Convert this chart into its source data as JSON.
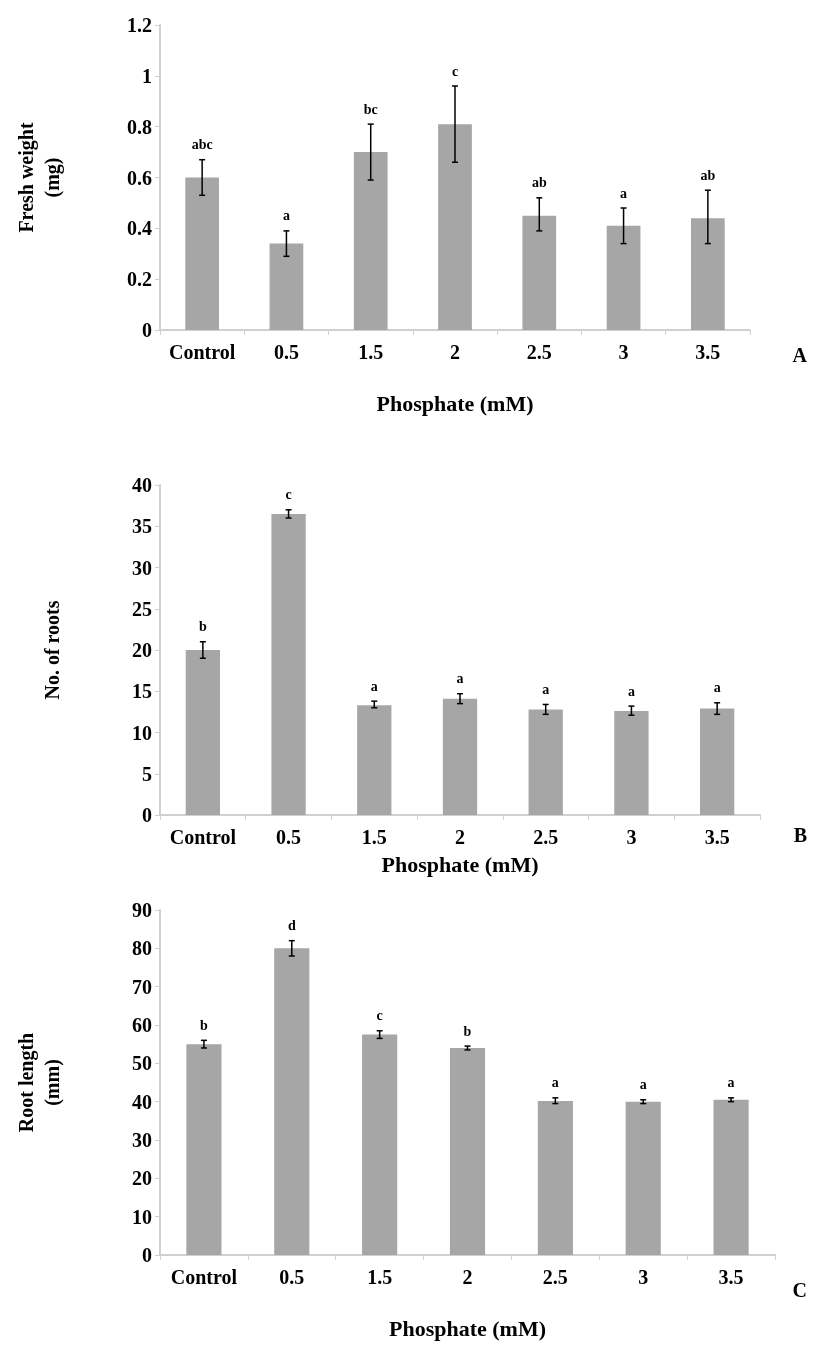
{
  "chart_data": [
    {
      "type": "bar",
      "categories": [
        "Control",
        "0.5",
        "1.5",
        "2",
        "2.5",
        "3",
        "3.5"
      ],
      "values": [
        0.6,
        0.34,
        0.7,
        0.81,
        0.45,
        0.41,
        0.44
      ],
      "color": "#a6a6a6",
      "errors": [
        [
          0.53,
          0.67
        ],
        [
          0.29,
          0.39
        ],
        [
          0.59,
          0.81
        ],
        [
          0.66,
          0.96
        ],
        [
          0.39,
          0.52
        ],
        [
          0.34,
          0.48
        ],
        [
          0.34,
          0.55
        ]
      ],
      "ylim": [
        0,
        1.2
      ],
      "yticks": [
        0,
        0.2,
        0.4,
        0.6,
        0.8,
        1,
        1.2
      ],
      "grid": false,
      "xlabel": "Phosphate (mM)",
      "ylabel": "Fresh weight\n(mg)",
      "annotations": [
        "abc",
        "a",
        "bc",
        "c",
        "ab",
        "a",
        "ab",
        "A"
      ]
    },
    {
      "type": "bar",
      "categories": [
        "Control",
        "0.5",
        "1.5",
        "2",
        "2.5",
        "3",
        "3.5"
      ],
      "values": [
        20,
        36.5,
        13.3,
        14.1,
        12.8,
        12.6,
        12.9
      ],
      "color": "#a6a6a6",
      "errors": [
        [
          19,
          21
        ],
        [
          36,
          37
        ],
        [
          13,
          13.8
        ],
        [
          13.5,
          14.7
        ],
        [
          12.2,
          13.4
        ],
        [
          12.1,
          13.2
        ],
        [
          12.2,
          13.6
        ]
      ],
      "ylim": [
        0,
        40
      ],
      "yticks": [
        0,
        5,
        10,
        15,
        20,
        25,
        30,
        35,
        40
      ],
      "grid": false,
      "xlabel": "Phosphate (mM)",
      "ylabel": "No. of roots",
      "annotations": [
        "b",
        "c",
        "a",
        "a",
        "a",
        "a",
        "a",
        "B"
      ]
    },
    {
      "type": "bar",
      "categories": [
        "Control",
        "0.5",
        "1.5",
        "2",
        "2.5",
        "3",
        "3.5"
      ],
      "values": [
        55,
        80,
        57.5,
        54,
        40.2,
        40,
        40.5
      ],
      "color": "#a6a6a6",
      "errors": [
        [
          54,
          56
        ],
        [
          78,
          82
        ],
        [
          56.5,
          58.5
        ],
        [
          53.5,
          54.5
        ],
        [
          39.5,
          41
        ],
        [
          39.5,
          40.5
        ],
        [
          40,
          41
        ]
      ],
      "ylim": [
        0,
        90
      ],
      "yticks": [
        0,
        10,
        20,
        30,
        40,
        50,
        60,
        70,
        80,
        90
      ],
      "grid": false,
      "xlabel": "Phosphate (mM)",
      "ylabel": "Root length\n(mm)",
      "annotations": [
        "b",
        "d",
        "c",
        "b",
        "a",
        "a",
        "a",
        "C"
      ]
    }
  ]
}
